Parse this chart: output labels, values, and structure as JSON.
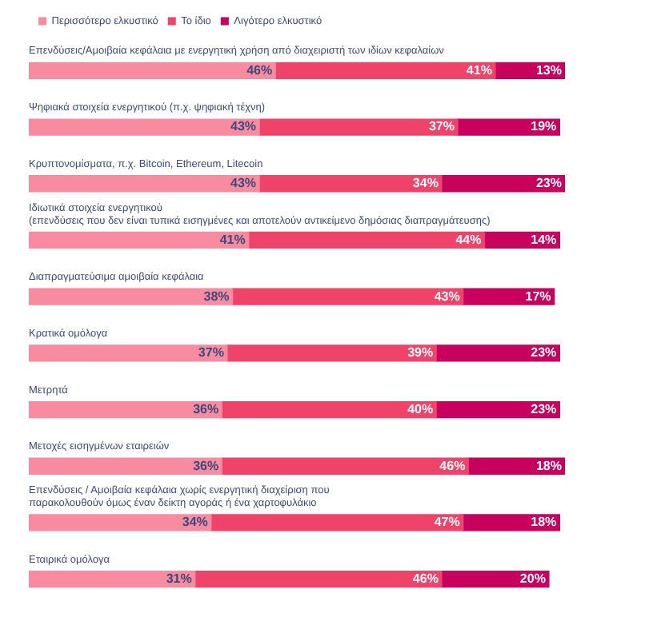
{
  "chart_data": {
    "type": "bar",
    "orientation": "horizontal",
    "stacked": true,
    "legend": "top left",
    "tick_labels": false,
    "categories": [
      "Επενδύσεις/Αμοιβαία κεφάλαια με ενεργητική χρήση από διαχειριστή των ιδίων κεφαλαίων",
      "Ψηφιακά στοιχεία ενεργητικού (π.χ. ψηφιακή τέχνη)",
      "Κρυπτονομίσματα, π.χ. Bitcoin, Ethereum, Litecoin",
      "Ιδιωτικά στοιχεία ενεργητικού\n(επενδύσεις που δεν είναι τυπικά εισηγμένες και αποτελούν αντικείμενο δημόσιας διαπραγμάτευσης)",
      "Διαπραγματεύσιμα αμοιβαία κεφάλαια",
      "Κρατικά ομόλογα",
      "Μετρητά",
      "Μετοχές εισηγμένων εταιρειών",
      "Επενδύσεις / Αμοιβαία κεφάλαια χωρίς ενεργητική διαχείριση που\nπαρακολουθούν όμως έναν δείκτη αγοράς ή ένα χαρτοφυλάκιο",
      "Εταιρικά ομόλογα"
    ],
    "series": [
      {
        "name": "Περισσότερο ελκυστικό",
        "color": "#f98ba0",
        "values": [
          46,
          43,
          43,
          41,
          38,
          37,
          36,
          36,
          34,
          31
        ],
        "value_labels": [
          "46%",
          "43%",
          "43%",
          "41%",
          "38%",
          "37%",
          "36%",
          "36%",
          "34%",
          "31%"
        ]
      },
      {
        "name": "Το ίδιο",
        "color": "#f0436a",
        "values": [
          41,
          37,
          34,
          44,
          43,
          39,
          40,
          46,
          47,
          46
        ],
        "value_labels": [
          "41%",
          "37%",
          "34%",
          "44%",
          "43%",
          "39%",
          "40%",
          "46%",
          "47%",
          "46%"
        ]
      },
      {
        "name": "Λιγότερο ελκυστικό",
        "color": "#c8005e",
        "values": [
          13,
          19,
          23,
          14,
          17,
          23,
          23,
          18,
          18,
          20
        ],
        "value_labels": [
          "13%",
          "19%",
          "23%",
          "14%",
          "17%",
          "23%",
          "23%",
          "18%",
          "18%",
          "20%"
        ]
      }
    ]
  }
}
